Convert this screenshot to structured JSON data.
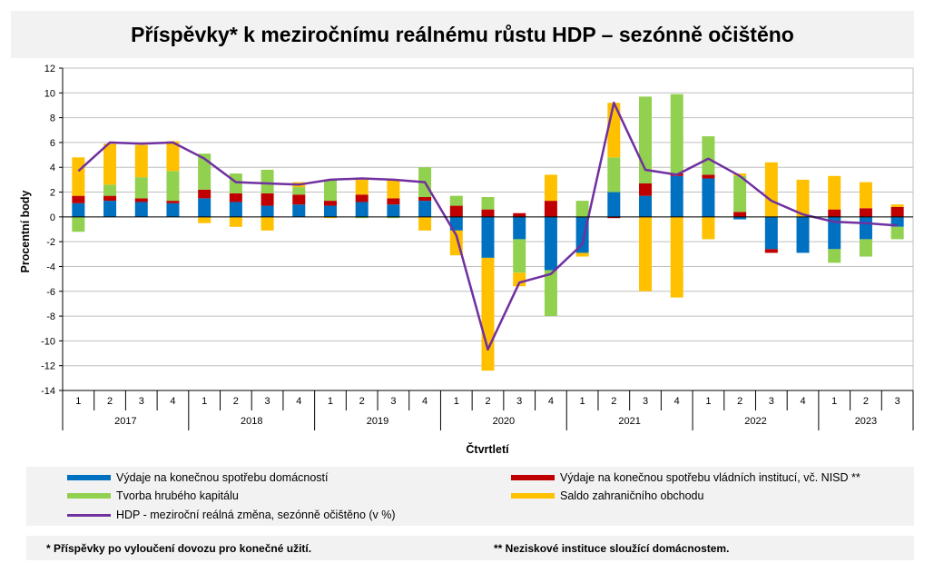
{
  "title": "Příspěvky* k meziročnímu reálnému růstu HDP – sezónně očištěno",
  "chart_data": {
    "type": "bar",
    "title": "Příspěvky* k meziročnímu reálnému růstu HDP – sezónně očištěno",
    "ylabel": "Procentní body",
    "xlabel": "Čtvrtletí",
    "ylim": [
      -14,
      12
    ],
    "yticks": [
      12,
      10,
      8,
      6,
      4,
      2,
      0,
      -2,
      -4,
      -6,
      -8,
      -10,
      -12,
      -14
    ],
    "grid": true,
    "legend": "bottom",
    "stacked": true,
    "quarters": [
      "1",
      "2",
      "3",
      "4",
      "1",
      "2",
      "3",
      "4",
      "1",
      "2",
      "3",
      "4",
      "1",
      "2",
      "3",
      "4",
      "1",
      "2",
      "3",
      "4",
      "1",
      "2",
      "3",
      "4",
      "1",
      "2",
      "3"
    ],
    "years": [
      {
        "label": "2017",
        "count": 4
      },
      {
        "label": "2018",
        "count": 4
      },
      {
        "label": "2019",
        "count": 4
      },
      {
        "label": "2020",
        "count": 4
      },
      {
        "label": "2021",
        "count": 4
      },
      {
        "label": "2022",
        "count": 4
      },
      {
        "label": "2023",
        "count": 3
      }
    ],
    "series": [
      {
        "name": "Výdaje na konečnou spotřebu domácností",
        "color": "#0070c0",
        "kind": "bar",
        "values": [
          1.1,
          1.3,
          1.2,
          1.1,
          1.5,
          1.2,
          0.9,
          1.0,
          0.9,
          1.2,
          1.0,
          1.3,
          -1.1,
          -3.3,
          -1.8,
          -4.3,
          -2.9,
          2.0,
          1.7,
          3.3,
          3.1,
          -0.2,
          -2.6,
          -2.9,
          -2.6,
          -1.8,
          -0.8
        ]
      },
      {
        "name": "Výdaje na konečnou spotřebu vládních institucí, vč. NISD **",
        "color": "#c00000",
        "kind": "bar",
        "values": [
          0.6,
          0.4,
          0.3,
          0.2,
          0.7,
          0.7,
          1.0,
          0.8,
          0.4,
          0.6,
          0.5,
          0.3,
          0.9,
          0.6,
          0.3,
          1.3,
          0.0,
          -0.1,
          1.0,
          0.2,
          0.3,
          0.4,
          -0.3,
          0.0,
          0.6,
          0.7,
          0.8
        ]
      },
      {
        "name": "Tvorba hrubého kapitálu",
        "color": "#92d050",
        "kind": "bar",
        "values": [
          -1.2,
          0.9,
          1.7,
          2.4,
          2.9,
          1.6,
          1.9,
          0.6,
          1.7,
          -0.1,
          -0.1,
          2.4,
          0.8,
          1.0,
          -2.7,
          -3.7,
          1.3,
          2.8,
          7.0,
          6.4,
          3.1,
          2.9,
          0.0,
          0.0,
          -1.1,
          -1.4,
          -1.0
        ]
      },
      {
        "name": "Saldo zahraničního obchodu",
        "color": "#ffc000",
        "kind": "bar",
        "values": [
          3.1,
          3.3,
          2.6,
          2.4,
          -0.5,
          -0.8,
          -1.1,
          0.4,
          -0.1,
          1.2,
          1.5,
          -1.1,
          -2.0,
          -9.1,
          -1.1,
          2.1,
          -0.3,
          4.4,
          -6.0,
          -6.5,
          -1.8,
          0.2,
          4.4,
          3.0,
          2.7,
          2.1,
          0.2
        ]
      },
      {
        "name": "HDP - meziroční reálná změna, sezónně očištěno (v %)",
        "color": "#7030a0",
        "kind": "line",
        "values": [
          3.7,
          6.0,
          5.9,
          6.0,
          4.7,
          2.8,
          2.7,
          2.6,
          3.0,
          3.1,
          3.0,
          2.8,
          -1.5,
          -10.7,
          -5.3,
          -4.6,
          -2.2,
          9.2,
          3.8,
          3.4,
          4.7,
          3.3,
          1.3,
          0.2,
          -0.4,
          -0.5,
          -0.7
        ]
      }
    ]
  },
  "footnotes": {
    "left": "* Příspěvky po vyloučení dovozu pro konečné užití.",
    "right": "** Neziskové instituce sloužící domácnostem."
  }
}
